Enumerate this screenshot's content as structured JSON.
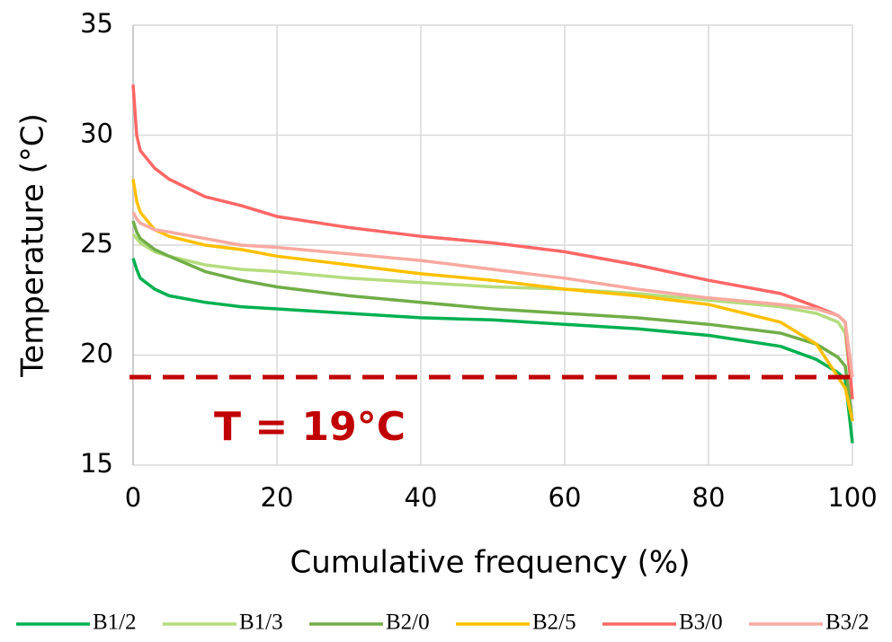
{
  "chart_data": {
    "type": "line",
    "x_label": "Cumulative frequency (%)",
    "y_label": "Temperature (°C)",
    "x": [
      0,
      0.5,
      1,
      3,
      5,
      10,
      15,
      20,
      30,
      40,
      50,
      60,
      70,
      80,
      90,
      95,
      98,
      99,
      100
    ],
    "series": [
      {
        "name": "B1/2",
        "color": "#00b050",
        "values": [
          24.4,
          23.9,
          23.5,
          23.0,
          22.7,
          22.4,
          22.2,
          22.1,
          21.9,
          21.7,
          21.6,
          21.4,
          21.2,
          20.9,
          20.4,
          19.8,
          19.2,
          18.9,
          16.0
        ]
      },
      {
        "name": "B1/3",
        "color": "#b4dc7e",
        "values": [
          25.5,
          25.3,
          25.1,
          24.7,
          24.5,
          24.1,
          23.9,
          23.8,
          23.5,
          23.3,
          23.1,
          23.0,
          22.8,
          22.5,
          22.2,
          21.9,
          21.5,
          21.0,
          18.0
        ]
      },
      {
        "name": "B2/0",
        "color": "#70ad47",
        "values": [
          26.1,
          25.6,
          25.3,
          24.8,
          24.5,
          23.8,
          23.4,
          23.1,
          22.7,
          22.4,
          22.1,
          21.9,
          21.7,
          21.4,
          21.0,
          20.5,
          19.9,
          19.5,
          17.0
        ]
      },
      {
        "name": "B2/5",
        "color": "#ffc000",
        "values": [
          28.0,
          27.0,
          26.5,
          25.7,
          25.4,
          25.0,
          24.8,
          24.5,
          24.1,
          23.7,
          23.4,
          23.0,
          22.7,
          22.3,
          21.5,
          20.5,
          19.0,
          18.5,
          17.0
        ]
      },
      {
        "name": "B3/0",
        "color": "#ff6666",
        "values": [
          32.3,
          30.0,
          29.3,
          28.5,
          28.0,
          27.2,
          26.8,
          26.3,
          25.8,
          25.4,
          25.1,
          24.7,
          24.1,
          23.4,
          22.8,
          22.2,
          21.8,
          21.5,
          18.0
        ]
      },
      {
        "name": "B3/2",
        "color": "#f8a9a0",
        "values": [
          26.5,
          26.2,
          26.0,
          25.7,
          25.6,
          25.3,
          25.0,
          24.9,
          24.6,
          24.3,
          23.9,
          23.5,
          23.0,
          22.6,
          22.3,
          22.1,
          21.8,
          21.5,
          19.0
        ]
      }
    ],
    "xlim": [
      0,
      100
    ],
    "xticks": [
      0,
      20,
      40,
      60,
      80,
      100
    ],
    "ylim": [
      15,
      35
    ],
    "yticks": [
      15,
      20,
      25,
      30,
      35
    ],
    "grid": true,
    "legend": "bottom",
    "threshold": {
      "value": 19,
      "label": "T = 19°C",
      "color": "#c00000"
    }
  }
}
